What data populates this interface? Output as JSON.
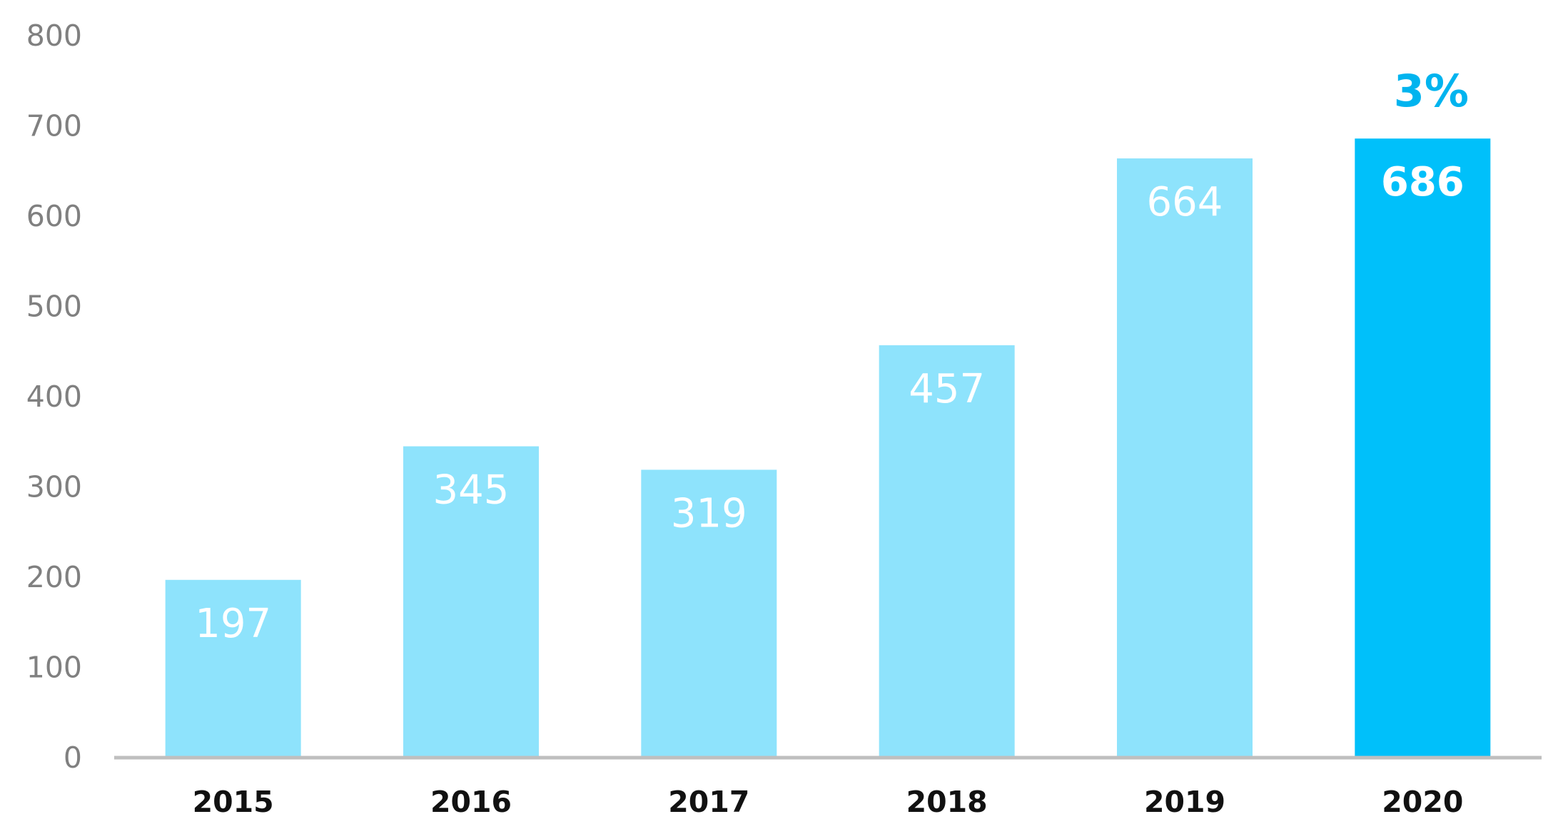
{
  "chart_data": {
    "type": "bar",
    "title": "",
    "xlabel": "",
    "ylabel": "",
    "categories": [
      "2015",
      "2016",
      "2017",
      "2018",
      "2019",
      "2020"
    ],
    "values": [
      197,
      345,
      319,
      457,
      664,
      686
    ],
    "data_labels": [
      "197",
      "345",
      "319",
      "457",
      "664",
      "686"
    ],
    "ylim": [
      0,
      800
    ],
    "yticks": [
      "0",
      "100",
      "200",
      "300",
      "400",
      "500",
      "600",
      "700",
      "800"
    ],
    "grid": false,
    "legend": "none",
    "highlight_index": 5,
    "annotation": {
      "text": "3%",
      "category": "2020"
    },
    "colors": {
      "bar": "#8ee3fc",
      "highlight": "#00c0fa",
      "annotation": "#00b4ef",
      "axis": "#bfbfbf",
      "tick_text": "#808080",
      "category_text": "#111111"
    }
  }
}
